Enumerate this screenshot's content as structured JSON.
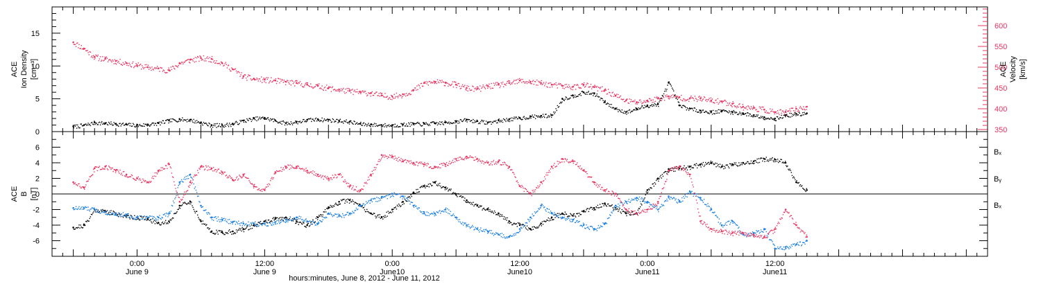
{
  "chart_data": [
    {
      "type": "scatter",
      "panel": "top",
      "ylabel_left": [
        "ACE",
        "Ion Density",
        "[cm⁻³]"
      ],
      "ylabel_right": [
        "ACE",
        "Velocity",
        "[km/s]"
      ],
      "ylim_left": [
        0,
        19
      ],
      "ylim_right": [
        345,
        645
      ],
      "yticks_left": [
        0,
        5,
        10,
        15
      ],
      "yticks_right": [
        350,
        400,
        450,
        500,
        550,
        600
      ],
      "series": [
        {
          "axis": "left",
          "color": "#000000",
          "x": [
            -6,
            -5,
            -4,
            -3,
            -2,
            -1,
            0,
            1,
            2,
            3,
            4,
            5,
            6,
            7,
            8,
            9,
            10,
            11,
            12,
            13,
            14,
            15,
            16,
            17,
            18,
            19,
            20,
            21,
            22,
            23,
            24,
            25,
            26,
            27,
            28,
            29,
            30,
            31,
            32,
            33,
            34,
            35,
            36,
            37,
            38,
            39,
            40,
            41,
            42,
            43,
            44,
            45,
            46,
            47,
            48,
            49,
            50,
            51,
            52,
            53,
            54,
            55,
            56,
            57,
            58,
            59,
            60,
            61,
            62,
            63
          ],
          "values": [
            0.8,
            1.0,
            1.4,
            1.3,
            1.2,
            1.1,
            1.0,
            1.1,
            1.3,
            1.7,
            1.9,
            1.8,
            1.4,
            1.0,
            1.0,
            1.2,
            1.7,
            2.0,
            2.1,
            1.7,
            1.3,
            1.5,
            1.8,
            1.9,
            1.8,
            1.7,
            1.5,
            1.2,
            1.1,
            1.0,
            1.0,
            1.1,
            1.2,
            1.2,
            1.3,
            1.4,
            1.6,
            1.8,
            1.6,
            1.4,
            1.7,
            1.9,
            2.1,
            2.3,
            2.4,
            2.5,
            5.0,
            5.5,
            6.0,
            5.8,
            4.5,
            3.5,
            3.0,
            3.5,
            4.0,
            4.2,
            7.5,
            4.0,
            3.5,
            3.2,
            3.0,
            3.2,
            3.0,
            2.8,
            2.5,
            2.2,
            2.0,
            2.5,
            2.7,
            2.8
          ]
        },
        {
          "axis": "right",
          "color": "#e8345f",
          "x": [
            -6,
            -5,
            -4,
            -3,
            -2,
            -1,
            0,
            1,
            2,
            3,
            4,
            5,
            6,
            7,
            8,
            9,
            10,
            11,
            12,
            13,
            14,
            15,
            16,
            17,
            18,
            19,
            20,
            21,
            22,
            23,
            24,
            25,
            26,
            27,
            28,
            29,
            30,
            31,
            32,
            33,
            34,
            35,
            36,
            37,
            38,
            39,
            40,
            41,
            42,
            43,
            44,
            45,
            46,
            47,
            48,
            49,
            50,
            51,
            52,
            53,
            54,
            55,
            56,
            57,
            58,
            59,
            60,
            61,
            62,
            63
          ],
          "values": [
            560,
            545,
            525,
            520,
            515,
            510,
            505,
            500,
            497,
            493,
            510,
            518,
            522,
            520,
            510,
            495,
            478,
            472,
            470,
            468,
            465,
            462,
            458,
            455,
            450,
            446,
            443,
            440,
            438,
            432,
            430,
            435,
            445,
            462,
            465,
            463,
            458,
            450,
            448,
            455,
            458,
            462,
            468,
            465,
            462,
            458,
            455,
            453,
            458,
            452,
            445,
            432,
            420,
            416,
            420,
            425,
            430,
            428,
            425,
            425,
            420,
            418,
            412,
            405,
            402,
            398,
            392,
            392,
            400,
            405
          ]
        }
      ]
    },
    {
      "type": "scatter",
      "panel": "bottom",
      "ylabel_left": [
        "ACE",
        "B",
        "[nT]"
      ],
      "ylim": [
        -8,
        8
      ],
      "yticks": [
        -6,
        -4,
        -2,
        0,
        2,
        4,
        6
      ],
      "zero_line": true,
      "legend": [
        "Bₓ",
        "Bᵧ",
        "Bₓ"
      ],
      "series": [
        {
          "name": "Bₓ",
          "color": "#000000",
          "x": [
            -6,
            -5,
            -4,
            -3,
            -2,
            -1,
            0,
            1,
            2,
            3,
            4,
            5,
            6,
            7,
            8,
            9,
            10,
            11,
            12,
            13,
            14,
            15,
            16,
            17,
            18,
            19,
            20,
            21,
            22,
            23,
            24,
            25,
            26,
            27,
            28,
            29,
            30,
            31,
            32,
            33,
            34,
            35,
            36,
            37,
            38,
            39,
            40,
            41,
            42,
            43,
            44,
            45,
            46,
            47,
            48,
            49,
            50,
            51,
            52,
            53,
            54,
            55,
            56,
            57,
            58,
            59,
            60,
            61,
            62,
            63
          ],
          "values": [
            -4.3,
            -4.0,
            -2.0,
            -2.2,
            -2.5,
            -2.8,
            -3.0,
            -3.2,
            -3.7,
            -3.5,
            -1.5,
            -1.0,
            -3.5,
            -4.8,
            -4.9,
            -4.8,
            -4.5,
            -4.0,
            -3.5,
            -3.2,
            -3.0,
            -3.5,
            -4.0,
            -3.0,
            -1.8,
            -1.0,
            -0.8,
            -1.5,
            -2.5,
            -3.0,
            -2.0,
            -1.0,
            0.2,
            1.0,
            1.5,
            0.8,
            0.0,
            -0.8,
            -1.5,
            -2.0,
            -2.5,
            -3.5,
            -4.0,
            -4.5,
            -3.8,
            -3.0,
            -2.5,
            -2.8,
            -2.2,
            -1.8,
            -1.2,
            -1.8,
            -2.5,
            -2.5,
            0.5,
            2.0,
            3.2,
            3.3,
            3.5,
            3.8,
            4.0,
            3.5,
            3.8,
            4.0,
            4.2,
            4.5,
            4.4,
            4.0,
            1.5,
            0.5
          ]
        },
        {
          "name": "Bᵧ",
          "color": "#1a7fe0",
          "x": [
            -6,
            -5,
            -4,
            -3,
            -2,
            -1,
            0,
            1,
            2,
            3,
            4,
            5,
            6,
            7,
            8,
            9,
            10,
            11,
            12,
            13,
            14,
            15,
            16,
            17,
            18,
            19,
            20,
            21,
            22,
            23,
            24,
            25,
            26,
            27,
            28,
            29,
            30,
            31,
            32,
            33,
            34,
            35,
            36,
            37,
            38,
            39,
            40,
            41,
            42,
            43,
            44,
            45,
            46,
            47,
            48,
            49,
            50,
            51,
            52,
            53,
            54,
            55,
            56,
            57,
            58,
            59,
            60,
            61,
            62,
            63
          ],
          "values": [
            -1.8,
            -1.8,
            -2.0,
            -2.3,
            -2.5,
            -2.7,
            -3.0,
            -3.0,
            -3.0,
            -2.5,
            1.5,
            2.5,
            -1.5,
            -3.0,
            -3.3,
            -3.6,
            -3.8,
            -3.8,
            -3.8,
            -3.6,
            -3.3,
            -3.0,
            -3.5,
            -3.8,
            -2.5,
            -2.8,
            -2.5,
            -1.5,
            -0.8,
            -0.5,
            0.0,
            -0.3,
            -1.5,
            -2.5,
            -2.5,
            -2.0,
            -3.0,
            -4.0,
            -4.5,
            -4.8,
            -5.2,
            -5.5,
            -4.5,
            -3.0,
            -1.5,
            -2.5,
            -3.0,
            -3.3,
            -4.0,
            -4.5,
            -3.8,
            -1.5,
            -1.0,
            -0.5,
            -1.0,
            -2.0,
            -0.3,
            -1.0,
            0.3,
            -0.5,
            -2.0,
            -4.0,
            -3.5,
            -5.2,
            -5.0,
            -4.5,
            -7.0,
            -6.8,
            -6.5,
            -6.0
          ]
        },
        {
          "name": "Bₓ",
          "color": "#e8345f",
          "x": [
            -6,
            -5,
            -4,
            -3,
            -2,
            -1,
            0,
            1,
            2,
            3,
            4,
            5,
            6,
            7,
            8,
            9,
            10,
            11,
            12,
            13,
            14,
            15,
            16,
            17,
            18,
            19,
            20,
            21,
            22,
            23,
            24,
            25,
            26,
            27,
            28,
            29,
            30,
            31,
            32,
            33,
            34,
            35,
            36,
            37,
            38,
            39,
            40,
            41,
            42,
            43,
            44,
            45,
            46,
            47,
            48,
            49,
            50,
            51,
            52,
            53,
            54,
            55,
            56,
            57,
            58,
            59,
            60,
            61,
            62,
            63
          ],
          "values": [
            1.5,
            0.8,
            3.3,
            3.5,
            3.0,
            2.5,
            2.0,
            1.5,
            3.0,
            3.8,
            -1.0,
            1.5,
            3.5,
            3.3,
            2.8,
            1.8,
            2.5,
            1.0,
            0.5,
            2.8,
            3.5,
            3.5,
            3.0,
            2.5,
            2.0,
            2.5,
            1.0,
            0.5,
            2.5,
            5.0,
            4.8,
            4.2,
            4.0,
            3.8,
            3.5,
            3.8,
            4.5,
            4.8,
            4.5,
            4.0,
            4.2,
            3.5,
            1.0,
            0.0,
            1.5,
            3.5,
            4.5,
            4.2,
            3.0,
            1.5,
            0.5,
            0.0,
            -2.0,
            -2.5,
            -2.0,
            -1.0,
            3.0,
            3.5,
            2.5,
            -3.5,
            -4.5,
            -4.8,
            -5.0,
            -5.0,
            -5.2,
            -5.5,
            -4.5,
            -2.0,
            -4.0,
            -5.5
          ]
        }
      ]
    }
  ],
  "x_axis": {
    "range_hours": [
      -8,
      80
    ],
    "ticks": [
      {
        "h": 0,
        "time": "0:00",
        "date": "June 9"
      },
      {
        "h": 12,
        "time": "12:00",
        "date": "June 9"
      },
      {
        "h": 24,
        "time": "0:00",
        "date": "June10"
      },
      {
        "h": 36,
        "time": "12:00",
        "date": "June10"
      },
      {
        "h": 48,
        "time": "0:00",
        "date": "June11"
      },
      {
        "h": 60,
        "time": "12:00",
        "date": "June11"
      }
    ],
    "label": "hours:minutes, June  8, 2012 - June 11, 2012"
  }
}
